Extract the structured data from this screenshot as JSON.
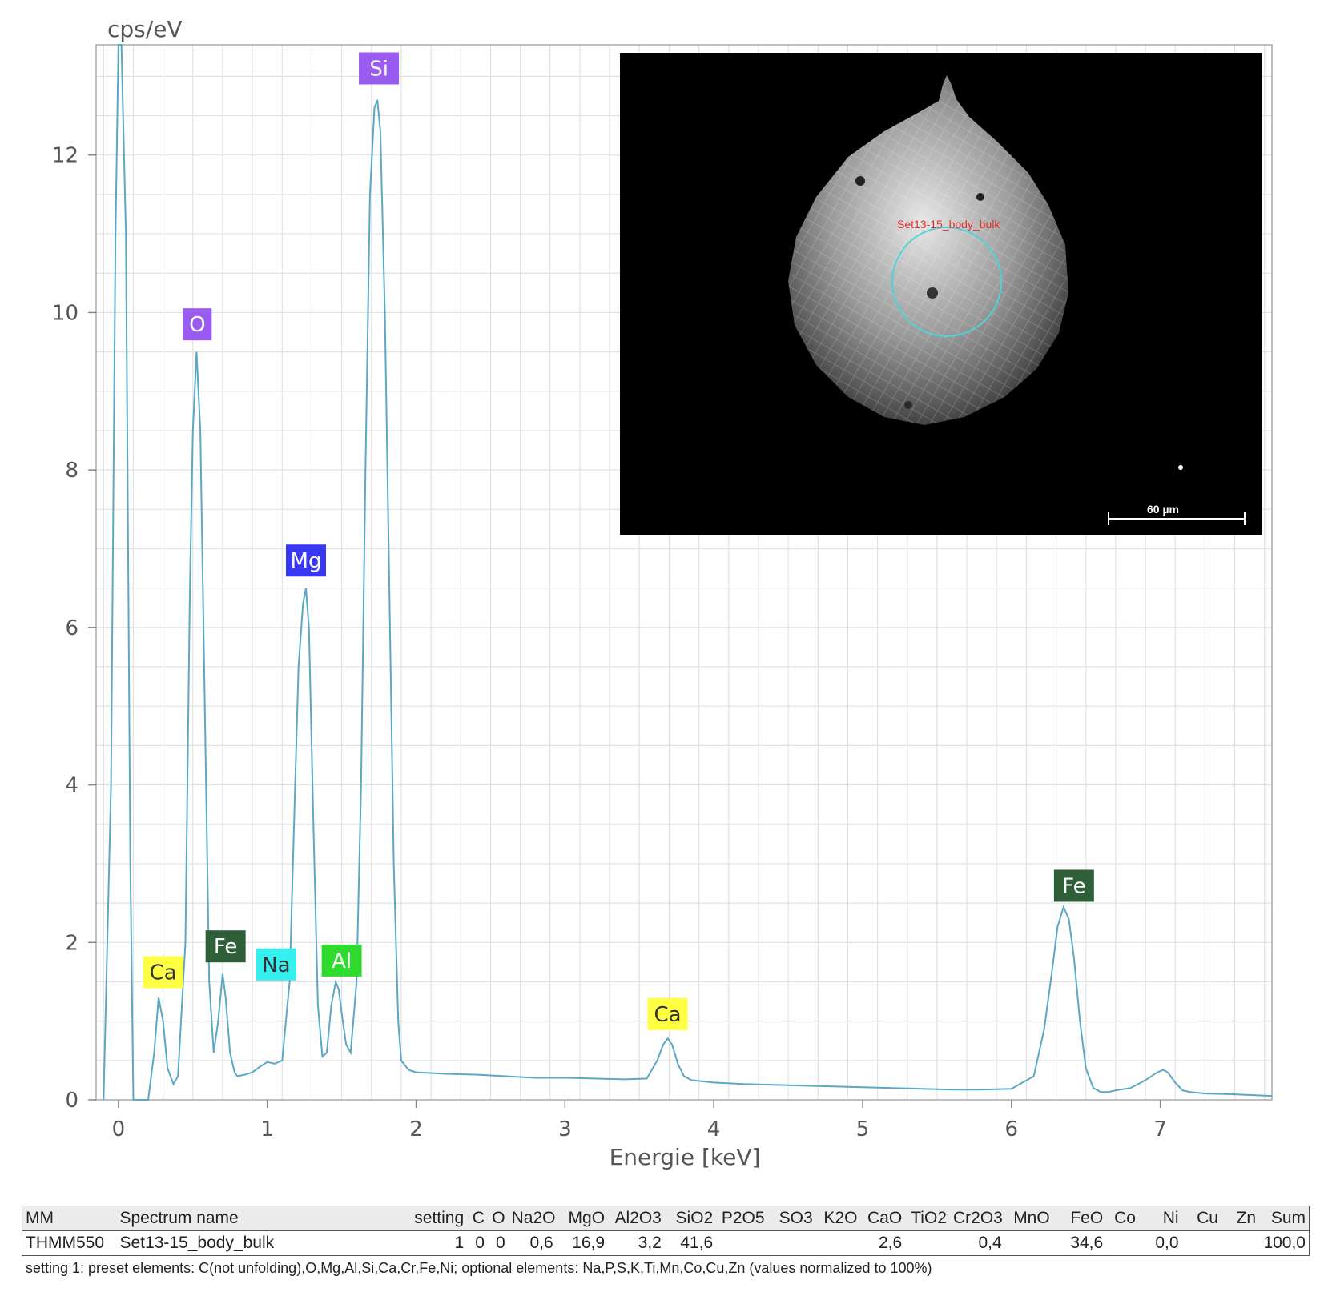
{
  "chart_data": {
    "type": "line",
    "xlabel": "Energie [keV]",
    "ylabel": "cps/eV",
    "xlim": [
      -0.15,
      7.75
    ],
    "ylim": [
      0,
      13.4
    ],
    "x_ticks": [
      0,
      1,
      2,
      3,
      4,
      5,
      6,
      7
    ],
    "y_ticks": [
      0,
      2,
      4,
      6,
      8,
      10,
      12
    ],
    "grid": true,
    "line_color": "#5aa8c4",
    "series": [
      {
        "x": [
          -0.1,
          -0.05,
          -0.02,
          0.0,
          0.02,
          0.05,
          0.08,
          0.1,
          0.15,
          0.2,
          0.24,
          0.27,
          0.3,
          0.33,
          0.37,
          0.4,
          0.45,
          0.48,
          0.5,
          0.525,
          0.55,
          0.58,
          0.61,
          0.64,
          0.67,
          0.7,
          0.72,
          0.75,
          0.78,
          0.8,
          0.85,
          0.9,
          0.95,
          1.0,
          1.05,
          1.1,
          1.15,
          1.18,
          1.21,
          1.24,
          1.26,
          1.28,
          1.31,
          1.34,
          1.37,
          1.4,
          1.43,
          1.46,
          1.48,
          1.5,
          1.53,
          1.56,
          1.6,
          1.63,
          1.66,
          1.69,
          1.72,
          1.74,
          1.76,
          1.79,
          1.82,
          1.85,
          1.88,
          1.9,
          1.95,
          2.0,
          2.2,
          2.4,
          2.6,
          2.8,
          3.0,
          3.2,
          3.4,
          3.55,
          3.62,
          3.66,
          3.69,
          3.72,
          3.76,
          3.8,
          3.85,
          3.9,
          4.0,
          4.2,
          4.4,
          4.6,
          4.8,
          5.0,
          5.2,
          5.4,
          5.6,
          5.8,
          6.0,
          6.15,
          6.22,
          6.27,
          6.31,
          6.35,
          6.385,
          6.42,
          6.46,
          6.5,
          6.55,
          6.6,
          6.65,
          6.7,
          6.8,
          6.9,
          6.98,
          7.02,
          7.05,
          7.1,
          7.15,
          7.2,
          7.3,
          7.5,
          7.75
        ],
        "y": [
          0.0,
          4.0,
          11.0,
          13.4,
          13.4,
          11.0,
          3.0,
          0.0,
          0.0,
          0.0,
          0.6,
          1.3,
          1.0,
          0.4,
          0.2,
          0.3,
          2.0,
          6.5,
          8.5,
          9.5,
          8.5,
          5.0,
          1.5,
          0.6,
          1.0,
          1.6,
          1.3,
          0.6,
          0.35,
          0.3,
          0.32,
          0.35,
          0.42,
          0.48,
          0.46,
          0.5,
          1.5,
          3.5,
          5.5,
          6.3,
          6.5,
          6.0,
          3.5,
          1.2,
          0.55,
          0.6,
          1.2,
          1.5,
          1.4,
          1.1,
          0.7,
          0.6,
          1.5,
          4.0,
          8.0,
          11.5,
          12.6,
          12.7,
          12.3,
          10.0,
          6.5,
          3.0,
          1.0,
          0.5,
          0.38,
          0.35,
          0.33,
          0.32,
          0.3,
          0.28,
          0.28,
          0.27,
          0.26,
          0.27,
          0.5,
          0.7,
          0.78,
          0.7,
          0.45,
          0.3,
          0.25,
          0.24,
          0.22,
          0.2,
          0.19,
          0.18,
          0.17,
          0.16,
          0.15,
          0.14,
          0.13,
          0.13,
          0.14,
          0.3,
          0.9,
          1.6,
          2.2,
          2.45,
          2.3,
          1.8,
          1.0,
          0.4,
          0.15,
          0.1,
          0.1,
          0.12,
          0.15,
          0.25,
          0.35,
          0.38,
          0.35,
          0.22,
          0.12,
          0.1,
          0.08,
          0.07,
          0.05
        ]
      }
    ],
    "peak_labels": [
      {
        "text": "Ca",
        "x": 0.3,
        "y": 1.62,
        "bg": "#ffff44",
        "fg": "#333333"
      },
      {
        "text": "O",
        "x": 0.53,
        "y": 9.85,
        "bg": "#9a5cf0",
        "fg": "#ffffff"
      },
      {
        "text": "Fe",
        "x": 0.72,
        "y": 1.95,
        "bg": "#2f5f38",
        "fg": "#ffffff"
      },
      {
        "text": "Na",
        "x": 1.06,
        "y": 1.72,
        "bg": "#36f0f0",
        "fg": "#333333"
      },
      {
        "text": "Mg",
        "x": 1.26,
        "y": 6.85,
        "bg": "#3838f0",
        "fg": "#ffffff"
      },
      {
        "text": "Al",
        "x": 1.5,
        "y": 1.77,
        "bg": "#2edb2e",
        "fg": "#ffffff"
      },
      {
        "text": "Si",
        "x": 1.75,
        "y": 13.1,
        "bg": "#9a5cf0",
        "fg": "#ffffff"
      },
      {
        "text": "Ca",
        "x": 3.69,
        "y": 1.09,
        "bg": "#ffff44",
        "fg": "#333333"
      },
      {
        "text": "Fe",
        "x": 6.42,
        "y": 2.72,
        "bg": "#2f5f38",
        "fg": "#ffffff"
      }
    ]
  },
  "inset": {
    "spot_label": "Set13-15_body_bulk",
    "scalebar": "60 µm"
  },
  "table": {
    "headers": [
      "MM",
      "Spectrum name",
      "setting",
      "C",
      "O",
      "Na2O",
      "MgO",
      "Al2O3",
      "SiO2",
      "P2O5",
      "SO3",
      "K2O",
      "CaO",
      "TiO2",
      "Cr2O3",
      "MnO",
      "FeO",
      "Co",
      "Ni",
      "Cu",
      "Zn",
      "Sum"
    ],
    "row": [
      "THMM550",
      "Set13-15_body_bulk",
      "1",
      "0",
      "0",
      "0,6",
      "16,9",
      "3,2",
      "41,6",
      "",
      "",
      "",
      "2,6",
      "",
      "0,4",
      "",
      "34,6",
      "",
      "0,0",
      "",
      "",
      "100,0"
    ]
  },
  "note": "setting 1: preset elements: C(not unfolding),O,Mg,Al,Si,Ca,Cr,Fe,Ni; optional elements: Na,P,S,K,Ti,Mn,Co,Cu,Zn (values normalized to 100%)"
}
